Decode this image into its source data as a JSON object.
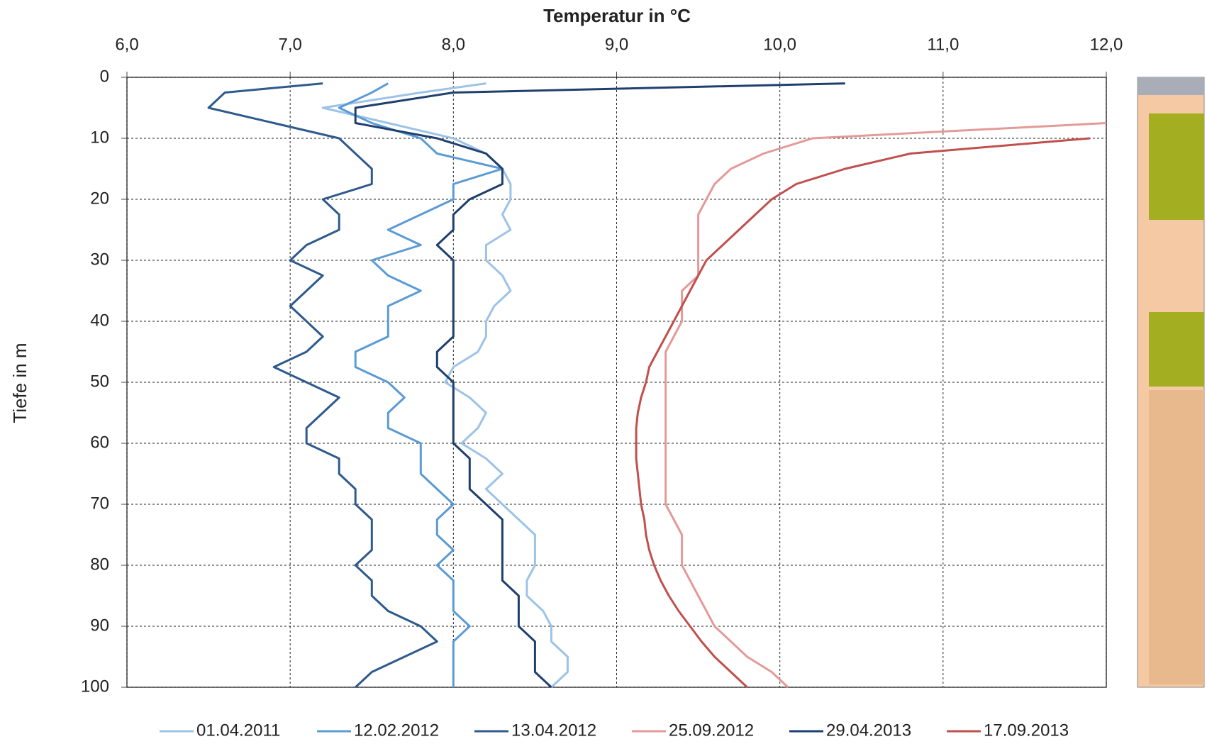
{
  "chart_data": {
    "type": "line",
    "x_label": "Temperatur in °C",
    "y_label": "Tiefe in m",
    "x": [
      1,
      2.5,
      5,
      7.5,
      10,
      12.5,
      15,
      17.5,
      20,
      22.5,
      25,
      27.5,
      30,
      32.5,
      35,
      37.5,
      40,
      42.5,
      45,
      47.5,
      50,
      52.5,
      55,
      57.5,
      60,
      62.5,
      65,
      67.5,
      70,
      72.5,
      75,
      77.5,
      80,
      82.5,
      85,
      87.5,
      90,
      92.5,
      95,
      97.5,
      100
    ],
    "xlim": [
      0,
      100
    ],
    "xticks": [
      0,
      10,
      20,
      30,
      40,
      50,
      60,
      70,
      80,
      90,
      100
    ],
    "ylim": [
      6,
      12
    ],
    "yticks": [
      {
        "value": 6,
        "label": "6,0"
      },
      {
        "value": 7,
        "label": "7,0"
      },
      {
        "value": 8,
        "label": "8,0"
      },
      {
        "value": 9,
        "label": "9,0"
      },
      {
        "value": 10,
        "label": "10,0"
      },
      {
        "value": 11,
        "label": "11,0"
      },
      {
        "value": 12,
        "label": "12,0"
      }
    ],
    "grid": true,
    "legend": "bottom",
    "series": [
      {
        "name": "01.04.2011",
        "color": "#9dc3e6",
        "values": [
          8.2,
          7.8,
          7.2,
          7.6,
          8.0,
          8.2,
          8.3,
          8.35,
          8.35,
          8.3,
          8.35,
          8.2,
          8.2,
          8.3,
          8.35,
          8.25,
          8.2,
          8.2,
          8.15,
          8.0,
          7.95,
          8.1,
          8.2,
          8.15,
          8.05,
          8.2,
          8.3,
          8.2,
          8.3,
          8.4,
          8.5,
          8.5,
          8.5,
          8.45,
          8.45,
          8.55,
          8.6,
          8.6,
          8.7,
          8.7,
          8.6
        ]
      },
      {
        "name": "12.02.2012",
        "color": "#5b9bd5",
        "values": [
          7.6,
          7.5,
          7.3,
          7.5,
          7.8,
          7.9,
          8.3,
          8.0,
          8.0,
          7.8,
          7.6,
          7.8,
          7.5,
          7.6,
          7.8,
          7.6,
          7.6,
          7.6,
          7.4,
          7.4,
          7.6,
          7.7,
          7.6,
          7.6,
          7.8,
          7.8,
          7.8,
          7.9,
          8.0,
          7.9,
          7.9,
          8.0,
          7.9,
          8.0,
          8.0,
          8.0,
          8.1,
          8.0,
          8.0,
          8.0,
          8.0
        ]
      },
      {
        "name": "13.04.2012",
        "color": "#2e5a8c",
        "values": [
          7.2,
          6.6,
          6.5,
          6.9,
          7.3,
          7.4,
          7.5,
          7.5,
          7.2,
          7.3,
          7.3,
          7.1,
          7.0,
          7.2,
          7.1,
          7.0,
          7.1,
          7.2,
          7.1,
          6.9,
          7.1,
          7.3,
          7.2,
          7.1,
          7.1,
          7.3,
          7.3,
          7.4,
          7.4,
          7.5,
          7.5,
          7.5,
          7.4,
          7.5,
          7.5,
          7.6,
          7.8,
          7.9,
          7.7,
          7.5,
          7.4
        ]
      },
      {
        "name": "25.09.2012",
        "color": "#e39a98",
        "values": [
          null,
          null,
          null,
          12.0,
          10.2,
          9.9,
          9.7,
          9.6,
          9.55,
          9.5,
          9.5,
          9.5,
          9.5,
          9.5,
          9.4,
          9.4,
          9.4,
          9.35,
          9.3,
          9.3,
          9.3,
          9.3,
          9.3,
          9.3,
          9.3,
          9.3,
          9.3,
          9.3,
          9.3,
          9.35,
          9.4,
          9.4,
          9.4,
          9.45,
          9.5,
          9.55,
          9.6,
          9.7,
          9.8,
          9.95,
          10.05
        ]
      },
      {
        "name": "29.04.2013",
        "color": "#1f3f6e",
        "values": [
          10.4,
          8.0,
          7.4,
          7.4,
          7.9,
          8.2,
          8.3,
          8.3,
          8.1,
          8.0,
          8.0,
          7.9,
          8.0,
          8.0,
          8.0,
          8.0,
          8.0,
          8.0,
          7.9,
          7.9,
          8.0,
          8.0,
          8.0,
          8.0,
          8.0,
          8.1,
          8.1,
          8.1,
          8.2,
          8.3,
          8.3,
          8.3,
          8.3,
          8.3,
          8.4,
          8.4,
          8.4,
          8.5,
          8.5,
          8.5,
          8.6
        ]
      },
      {
        "name": "17.09.2013",
        "color": "#c0504d",
        "values": [
          null,
          null,
          null,
          null,
          11.9,
          10.8,
          10.4,
          10.1,
          9.95,
          9.85,
          9.75,
          9.65,
          9.55,
          9.5,
          9.45,
          9.4,
          9.35,
          9.3,
          9.25,
          9.2,
          9.18,
          9.15,
          9.13,
          9.12,
          9.12,
          9.12,
          9.13,
          9.14,
          9.15,
          9.17,
          9.18,
          9.2,
          9.23,
          9.27,
          9.32,
          9.38,
          9.45,
          9.52,
          9.6,
          9.7,
          9.8
        ]
      }
    ]
  }
}
